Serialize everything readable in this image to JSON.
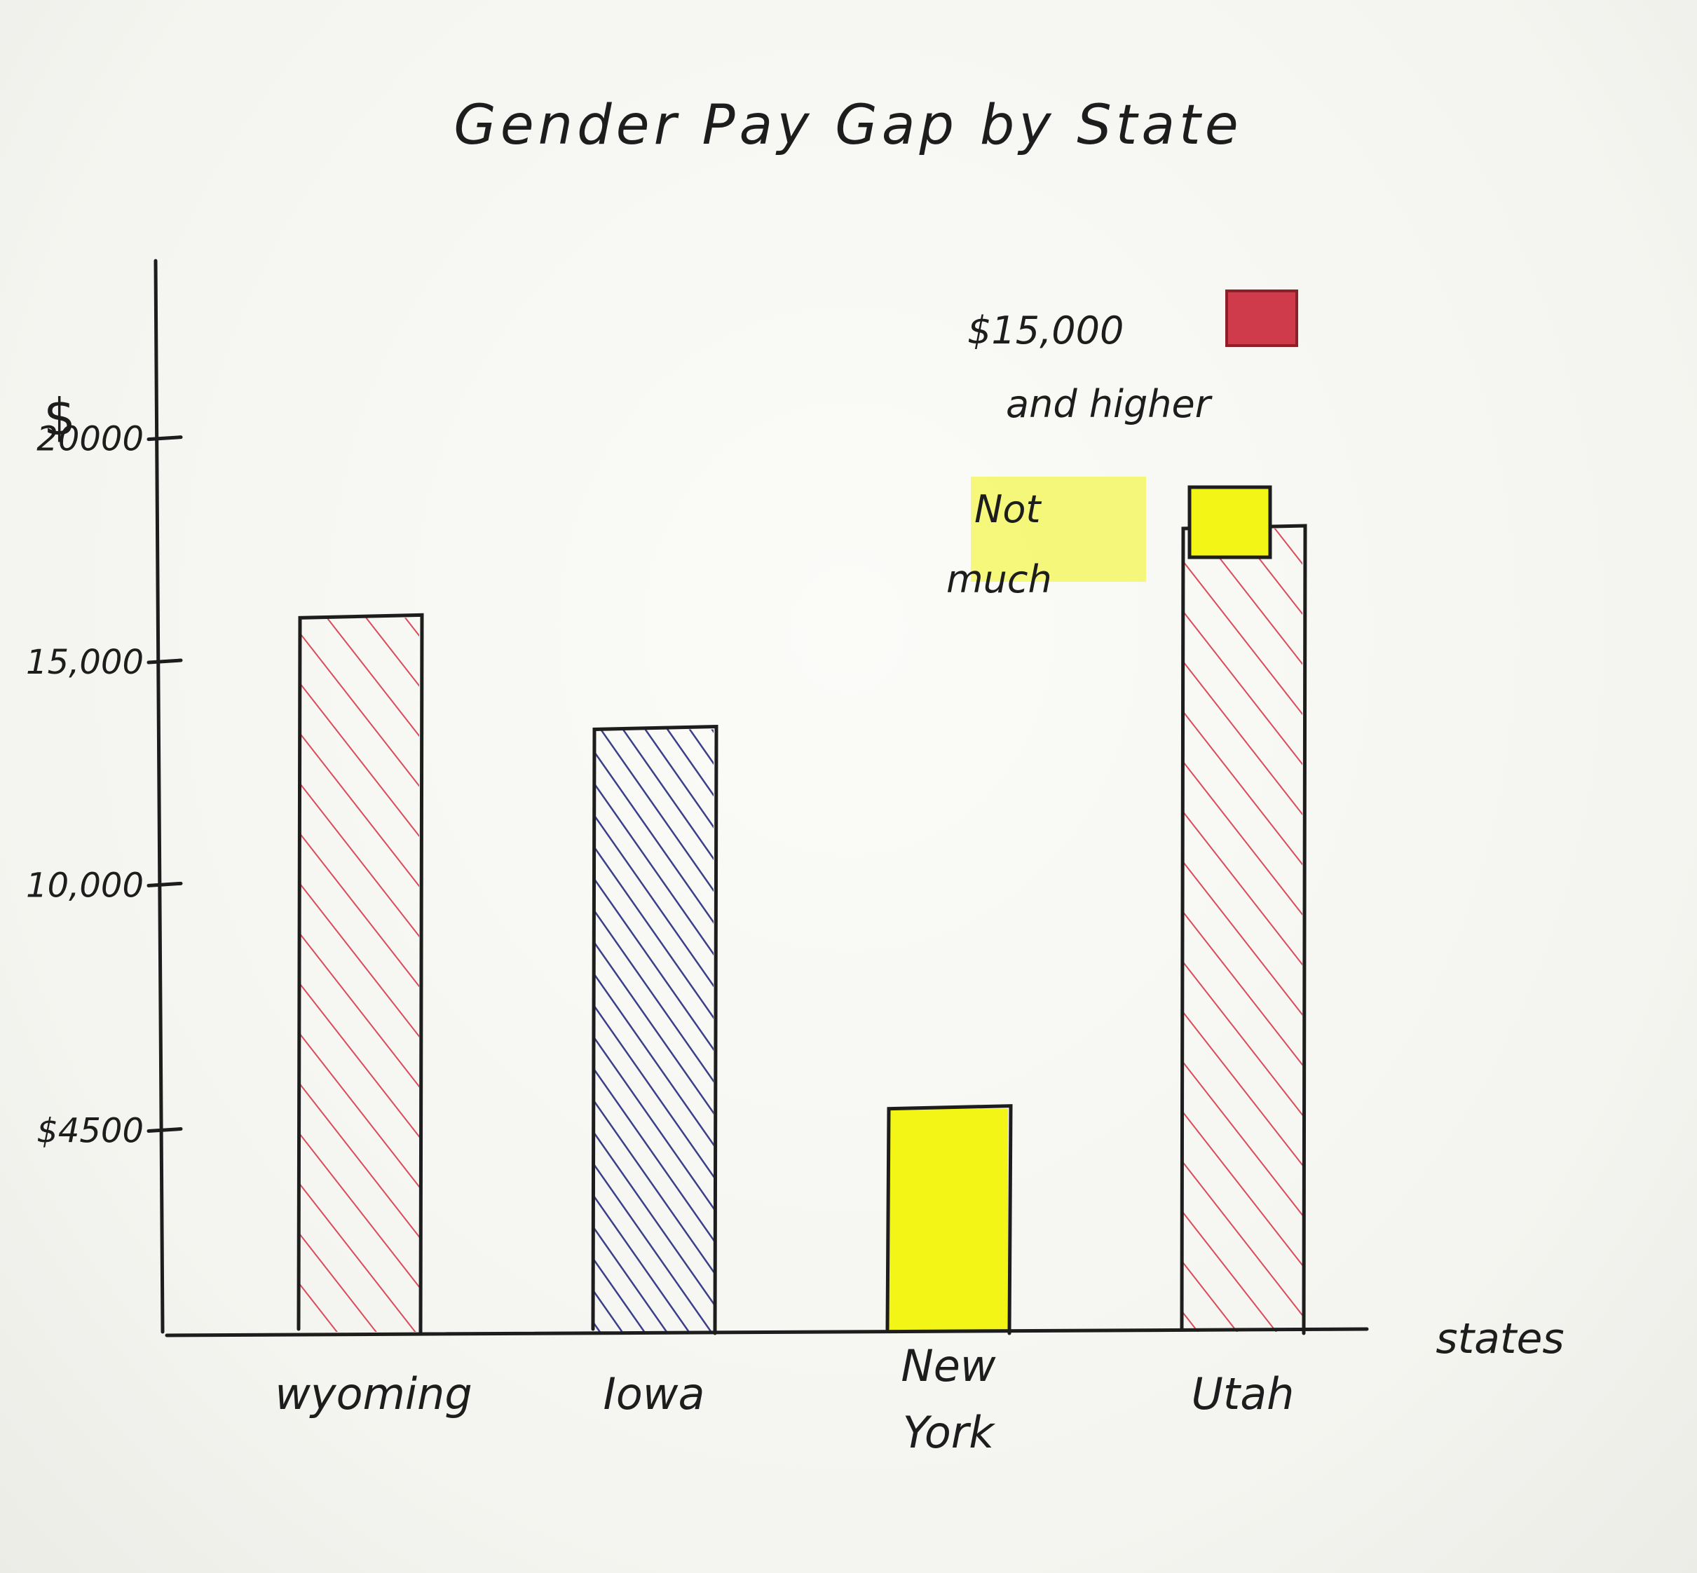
{
  "chart_data": {
    "type": "bar",
    "title": "Gender Pay Gap by State",
    "xlabel": "states",
    "ylabel": "$",
    "categories": [
      "Wyoming",
      "Iowa",
      "New York",
      "Utah"
    ],
    "category_labels": [
      [
        "wyoming"
      ],
      [
        "Iowa"
      ],
      [
        "New",
        "York"
      ],
      [
        "Utah"
      ]
    ],
    "values": [
      16000,
      13500,
      5000,
      18000
    ],
    "bar_groups": [
      "high",
      "other",
      "low",
      "high"
    ],
    "ylim": [
      0,
      24000
    ],
    "yticks": [
      {
        "value": 4500,
        "label": "$4500"
      },
      {
        "value": 10000,
        "label": "10,000"
      },
      {
        "value": 15000,
        "label": "15,000"
      },
      {
        "value": 20000,
        "label": "20000"
      }
    ],
    "legend": [
      {
        "group": "high",
        "label_lines": [
          "$15,000",
          "and higher"
        ],
        "color": "#cf3b4a"
      },
      {
        "group": "low",
        "label_lines": [
          "Not",
          "much"
        ],
        "color": "#f2f516"
      }
    ],
    "legend_position": "top-right",
    "grid": false
  },
  "colors": {
    "ink": "#1d1d1d",
    "high": "#d94a5a",
    "other": "#3b3f8a",
    "low": "#f2f516",
    "legend_red": "#cf3b4a"
  }
}
